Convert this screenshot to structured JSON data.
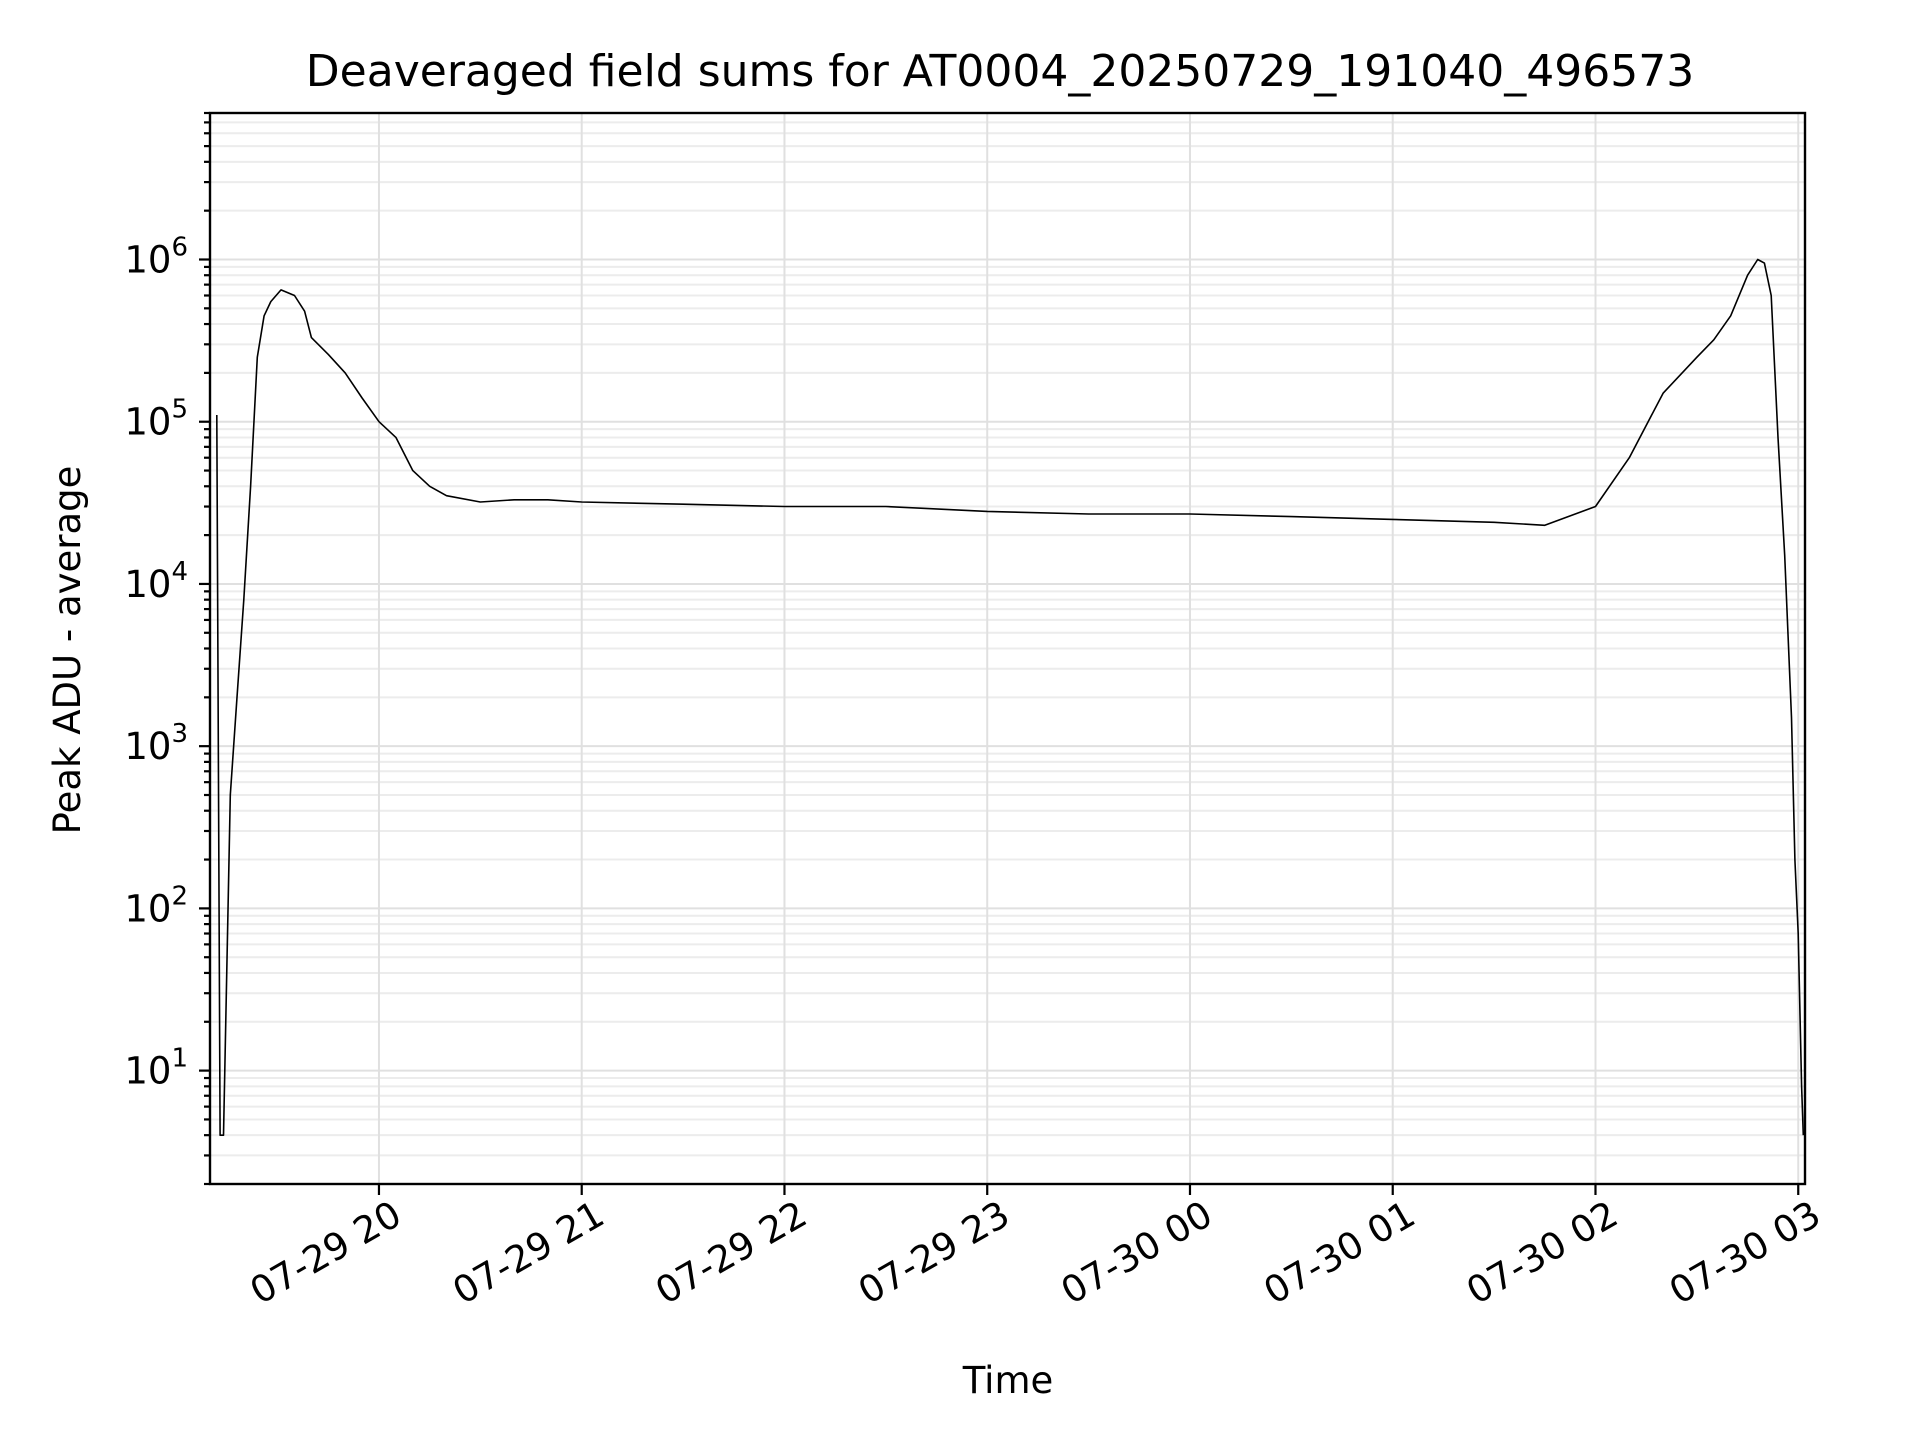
{
  "chart_data": {
    "type": "line",
    "title": "Deaveraged field sums for AT0004_20250729_191040_496573",
    "xlabel": "Time",
    "ylabel": "Peak ADU - average",
    "yscale": "log",
    "ylim": [
      2,
      8000000
    ],
    "xlim": [
      "2025-07-29 19:10",
      "2025-07-30 03:02"
    ],
    "grid": true,
    "x_ticks": [
      {
        "value": "2025-07-29 20:00",
        "label": "07-29 20"
      },
      {
        "value": "2025-07-29 21:00",
        "label": "07-29 21"
      },
      {
        "value": "2025-07-29 22:00",
        "label": "07-29 22"
      },
      {
        "value": "2025-07-29 23:00",
        "label": "07-29 23"
      },
      {
        "value": "2025-07-30 00:00",
        "label": "07-30 00"
      },
      {
        "value": "2025-07-30 01:00",
        "label": "07-30 01"
      },
      {
        "value": "2025-07-30 02:00",
        "label": "07-30 02"
      },
      {
        "value": "2025-07-30 03:00",
        "label": "07-30 03"
      }
    ],
    "y_ticks": [
      {
        "value": 10,
        "base": "10",
        "exp": "1"
      },
      {
        "value": 100,
        "base": "10",
        "exp": "2"
      },
      {
        "value": 1000,
        "base": "10",
        "exp": "3"
      },
      {
        "value": 10000,
        "base": "10",
        "exp": "4"
      },
      {
        "value": 100000,
        "base": "10",
        "exp": "5"
      },
      {
        "value": 1000000,
        "base": "10",
        "exp": "6"
      }
    ],
    "series": [
      {
        "color": "#000000",
        "x": [
          "2025-07-29 19:12",
          "2025-07-29 19:13",
          "2025-07-29 19:14",
          "2025-07-29 19:16",
          "2025-07-29 19:18",
          "2025-07-29 19:20",
          "2025-07-29 19:22",
          "2025-07-29 19:24",
          "2025-07-29 19:26",
          "2025-07-29 19:28",
          "2025-07-29 19:31",
          "2025-07-29 19:35",
          "2025-07-29 19:38",
          "2025-07-29 19:40",
          "2025-07-29 19:45",
          "2025-07-29 19:50",
          "2025-07-29 19:55",
          "2025-07-29 20:00",
          "2025-07-29 20:05",
          "2025-07-29 20:10",
          "2025-07-29 20:15",
          "2025-07-29 20:20",
          "2025-07-29 20:30",
          "2025-07-29 20:40",
          "2025-07-29 20:50",
          "2025-07-29 21:00",
          "2025-07-29 21:30",
          "2025-07-29 22:00",
          "2025-07-29 22:30",
          "2025-07-29 23:00",
          "2025-07-29 23:30",
          "2025-07-30 00:00",
          "2025-07-30 00:30",
          "2025-07-30 01:00",
          "2025-07-30 01:30",
          "2025-07-30 01:45",
          "2025-07-30 02:00",
          "2025-07-30 02:10",
          "2025-07-30 02:20",
          "2025-07-30 02:30",
          "2025-07-30 02:35",
          "2025-07-30 02:40",
          "2025-07-30 02:45",
          "2025-07-30 02:48",
          "2025-07-30 02:50",
          "2025-07-30 02:52",
          "2025-07-30 02:54",
          "2025-07-30 02:56",
          "2025-07-30 02:58",
          "2025-07-30 02:59",
          "2025-07-30 03:00",
          "2025-07-30 03:01",
          "2025-07-30 03:01:30"
        ],
        "y": [
          110000,
          4,
          4,
          500,
          2000,
          8000,
          40000,
          250000,
          450000,
          550000,
          650000,
          600000,
          480000,
          330000,
          260000,
          200000,
          140000,
          100000,
          80000,
          50000,
          40000,
          35000,
          32000,
          33000,
          33000,
          32000,
          31000,
          30000,
          30000,
          28000,
          27000,
          27000,
          26000,
          25000,
          24000,
          23000,
          30000,
          60000,
          150000,
          250000,
          320000,
          450000,
          800000,
          1000000,
          950000,
          600000,
          80000,
          15000,
          1500,
          200,
          70,
          8,
          4
        ]
      }
    ]
  }
}
